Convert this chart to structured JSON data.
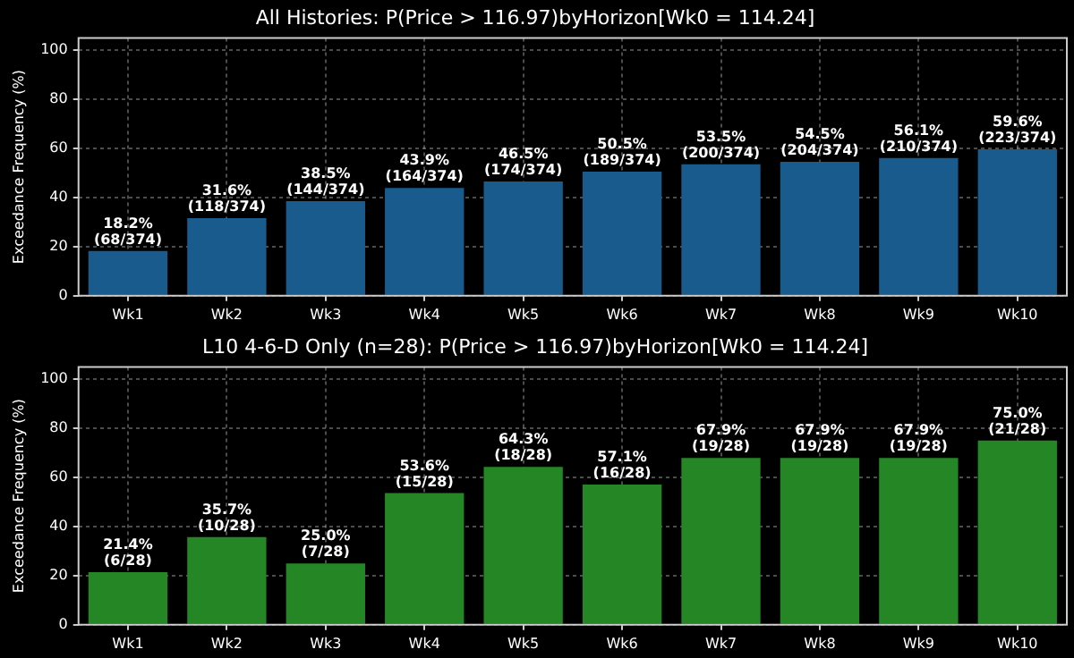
{
  "chart_data": [
    {
      "type": "bar",
      "title": "All Histories: P(Price > 116.97)byHorizon[Wk0 = 114.24]",
      "ylabel": "Exceedance Frequency (%)",
      "categories": [
        "Wk1",
        "Wk2",
        "Wk3",
        "Wk4",
        "Wk5",
        "Wk6",
        "Wk7",
        "Wk8",
        "Wk9",
        "Wk10"
      ],
      "values": [
        18.2,
        31.6,
        38.5,
        43.9,
        46.5,
        50.5,
        53.5,
        54.5,
        56.1,
        59.6
      ],
      "value_labels": [
        "18.2%\n(68/374)",
        "31.6%\n(118/374)",
        "38.5%\n(144/374)",
        "43.9%\n(164/374)",
        "46.5%\n(174/374)",
        "50.5%\n(189/374)",
        "53.5%\n(200/374)",
        "54.5%\n(204/374)",
        "56.1%\n(210/374)",
        "59.6%\n(223/374)"
      ],
      "color": "#1a5b8e",
      "ylim": [
        0,
        105
      ],
      "yticks": [
        0,
        20,
        40,
        60,
        80,
        100
      ],
      "grid": true
    },
    {
      "type": "bar",
      "title": "L10 4-6-D Only (n=28): P(Price > 116.97)byHorizon[Wk0 = 114.24]",
      "ylabel": "Exceedance Frequency (%)",
      "categories": [
        "Wk1",
        "Wk2",
        "Wk3",
        "Wk4",
        "Wk5",
        "Wk6",
        "Wk7",
        "Wk8",
        "Wk9",
        "Wk10"
      ],
      "values": [
        21.4,
        35.7,
        25.0,
        53.6,
        64.3,
        57.1,
        67.9,
        67.9,
        67.9,
        75.0
      ],
      "value_labels": [
        "21.4%\n(6/28)",
        "35.7%\n(10/28)",
        "25.0%\n(7/28)",
        "53.6%\n(15/28)",
        "64.3%\n(18/28)",
        "57.1%\n(16/28)",
        "67.9%\n(19/28)",
        "67.9%\n(19/28)",
        "67.9%\n(19/28)",
        "75.0%\n(21/28)"
      ],
      "color": "#258625",
      "ylim": [
        0,
        105
      ],
      "yticks": [
        0,
        20,
        40,
        60,
        80,
        100
      ],
      "grid": true
    }
  ]
}
